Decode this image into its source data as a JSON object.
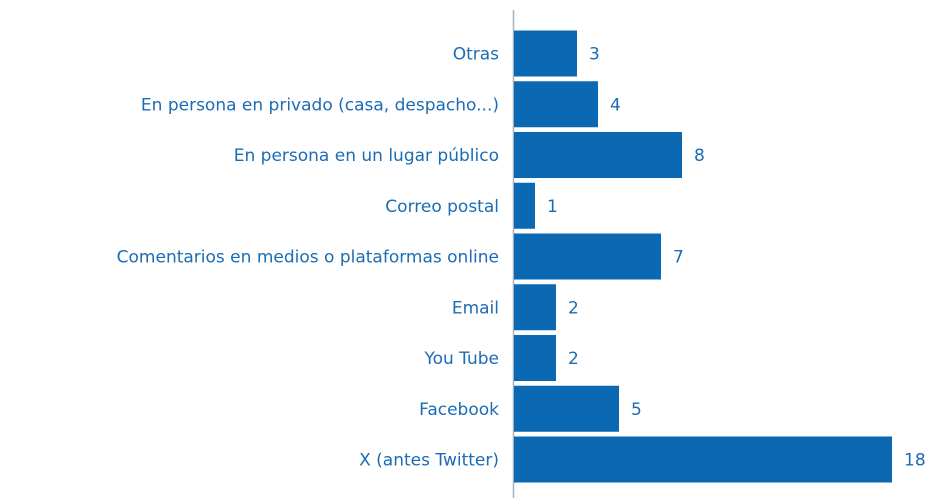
{
  "chart_data": {
    "type": "hbar",
    "categories": [
      "Otras",
      "En persona en privado (casa, despacho...)",
      "En persona en un lugar público",
      "Correo postal",
      "Comentarios en medios o plataformas online",
      "Email",
      "You Tube",
      "Facebook",
      "X (antes Twitter)"
    ],
    "values": [
      3,
      4,
      8,
      1,
      7,
      2,
      2,
      5,
      18
    ],
    "color": "#0b68b2",
    "xlim": [
      0,
      18
    ]
  }
}
